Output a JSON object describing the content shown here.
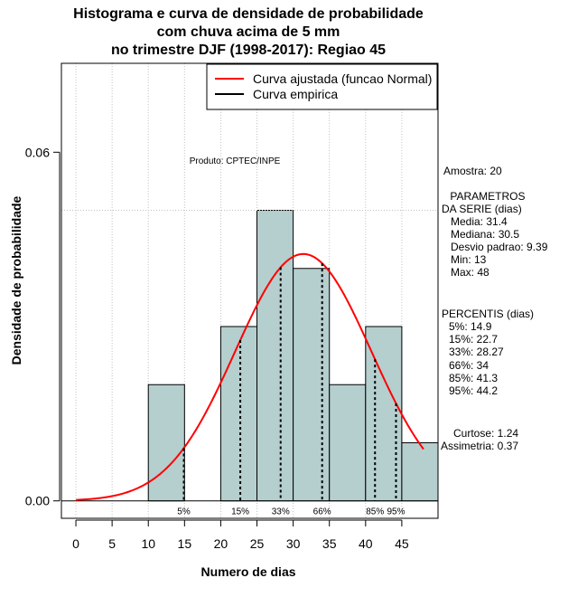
{
  "chart_data": {
    "type": "histogram",
    "title_lines": [
      "Histograma e curva de densidade de probabilidade",
      "com chuva acima de 5 mm",
      "no trimestre DJF (1998-2017): Regiao 45"
    ],
    "xlabel": "Numero de dias",
    "ylabel": "Densidade de probabilidade",
    "xlim": [
      -2,
      50
    ],
    "ylim": [
      -0.003,
      0.0753
    ],
    "x_ticks": [
      0,
      5,
      10,
      15,
      20,
      25,
      30,
      35,
      40,
      45
    ],
    "y_ticks": [
      0.0,
      0.06
    ],
    "y_tick_labels": [
      "0.00",
      "0.06"
    ],
    "bins": [
      {
        "start": 10,
        "end": 15,
        "density": 0.02
      },
      {
        "start": 15,
        "end": 20,
        "density": 0.0
      },
      {
        "start": 20,
        "end": 25,
        "density": 0.03
      },
      {
        "start": 25,
        "end": 30,
        "density": 0.05
      },
      {
        "start": 30,
        "end": 35,
        "density": 0.04
      },
      {
        "start": 35,
        "end": 40,
        "density": 0.02
      },
      {
        "start": 40,
        "end": 45,
        "density": 0.03
      },
      {
        "start": 45,
        "end": 50,
        "density": 0.01
      }
    ],
    "hline_density": 0.05,
    "normal_fit": {
      "mean": 31.4,
      "sd": 9.39,
      "x_from": 0,
      "x_to": 48
    },
    "percentile_lines": [
      {
        "label": "5%",
        "x": 14.9
      },
      {
        "label": "15%",
        "x": 22.7
      },
      {
        "label": "33%",
        "x": 28.27
      },
      {
        "label": "66%",
        "x": 34
      },
      {
        "label": "85%",
        "x": 41.3
      },
      {
        "label": "95%",
        "x": 44.2
      }
    ],
    "legend": [
      {
        "label": "Curva ajustada (funcao Normal)",
        "color": "#ff0000"
      },
      {
        "label": "Curva empirica",
        "color": "#000000"
      }
    ],
    "annotation": "Produto: CPTEC/INPE",
    "colors": {
      "bar_fill": "#b5cece",
      "curve": "#ff0000",
      "grid": "#c0c0c0"
    }
  },
  "stats": {
    "amostra": "Amostra: 20",
    "parametros_title": [
      " PARAMETROS",
      "DA SERIE (dias)"
    ],
    "parametros": [
      "Media: 31.4",
      "Mediana: 30.5",
      "Desvio padrao: 9.39",
      "Min: 13",
      "Max: 48"
    ],
    "percentis_title": "PERCENTIS (dias)",
    "percentis": [
      "5%: 14.9",
      "15%: 22.7",
      "33%: 28.27",
      "66%: 34",
      "85%: 41.3",
      "95%: 44.2"
    ],
    "curtose": "Curtose: 1.24",
    "assimetria": "Assimetria: 0.37"
  }
}
